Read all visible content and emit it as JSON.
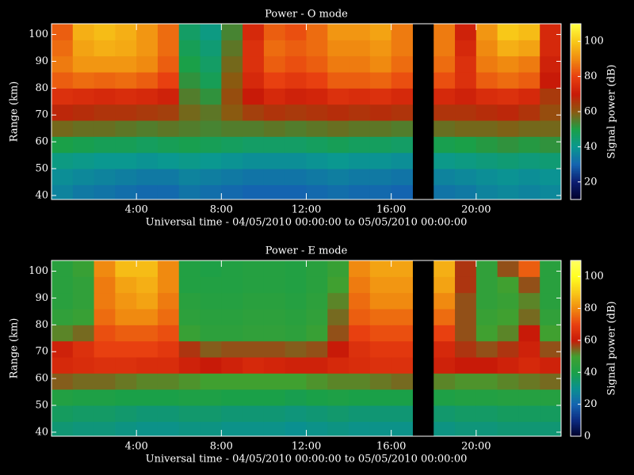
{
  "chart_data": [
    {
      "type": "heatmap",
      "title": "Power - O mode",
      "xlabel": "Universal time - 04/05/2010 00:00:00 to 05/05/2010 00:00:00",
      "ylabel": "Range (km)",
      "colorbar_label": "Signal power (dB)",
      "xlim": [
        0,
        24
      ],
      "ylim": [
        38.5,
        104
      ],
      "xticks": [
        {
          "value": 4,
          "label": "4:00"
        },
        {
          "value": 8,
          "label": "8:00"
        },
        {
          "value": 12,
          "label": "12:00"
        },
        {
          "value": 16,
          "label": "16:00"
        },
        {
          "value": 20,
          "label": "20:00"
        }
      ],
      "yticks": [
        40,
        50,
        60,
        70,
        80,
        90,
        100
      ],
      "zlim": [
        10,
        110
      ],
      "zticks": [
        20,
        40,
        60,
        80,
        100
      ],
      "colorscale": [
        "#000028",
        "#0c1c70",
        "#1464b0",
        "#0a9890",
        "#1aa048",
        "#8a5a10",
        "#c81a08",
        "#e84010",
        "#f08a10",
        "#f8c818",
        "#ffff40"
      ],
      "x_bins": [
        0,
        1,
        2,
        3,
        4,
        5,
        6,
        7,
        8,
        9,
        10,
        11,
        12,
        13,
        14,
        15,
        16,
        17,
        18,
        19,
        20,
        21,
        22,
        23,
        24
      ],
      "y_bins": [
        38,
        44,
        50,
        56,
        62,
        68,
        74,
        80,
        86,
        92,
        98,
        104
      ],
      "values": [
        [
          36,
          34,
          33,
          32,
          31,
          31,
          33,
          32,
          31,
          30,
          30,
          30,
          31,
          32,
          31,
          31,
          30,
          null,
          33,
          34,
          36,
          37,
          36,
          37
        ],
        [
          38,
          37,
          36,
          35,
          34,
          34,
          36,
          35,
          34,
          33,
          33,
          33,
          34,
          35,
          34,
          34,
          33,
          null,
          36,
          37,
          38,
          39,
          38,
          39
        ],
        [
          42,
          41,
          40,
          40,
          39,
          40,
          41,
          40,
          39,
          38,
          38,
          38,
          39,
          40,
          39,
          39,
          38,
          null,
          41,
          42,
          43,
          44,
          43,
          44
        ],
        [
          50,
          49,
          48,
          48,
          47,
          48,
          49,
          48,
          47,
          46,
          46,
          46,
          47,
          48,
          47,
          47,
          46,
          null,
          49,
          50,
          51,
          52,
          51,
          52
        ],
        [
          58,
          57,
          57,
          56,
          55,
          56,
          55,
          54,
          55,
          55,
          56,
          55,
          56,
          57,
          56,
          56,
          55,
          null,
          57,
          58,
          58,
          59,
          58,
          58
        ],
        [
          68,
          67,
          66,
          66,
          65,
          64,
          58,
          56,
          60,
          64,
          66,
          65,
          66,
          67,
          66,
          67,
          66,
          null,
          66,
          66,
          67,
          68,
          66,
          62
        ],
        [
          76,
          75,
          74,
          75,
          74,
          72,
          55,
          52,
          62,
          70,
          74,
          72,
          73,
          76,
          75,
          76,
          74,
          null,
          74,
          72,
          75,
          76,
          74,
          65
        ],
        [
          84,
          86,
          85,
          86,
          84,
          80,
          52,
          48,
          60,
          74,
          80,
          78,
          80,
          84,
          84,
          85,
          82,
          null,
          82,
          76,
          84,
          86,
          84,
          70
        ],
        [
          88,
          92,
          92,
          92,
          90,
          84,
          50,
          46,
          58,
          76,
          84,
          82,
          84,
          88,
          88,
          90,
          86,
          null,
          86,
          76,
          88,
          90,
          88,
          72
        ],
        [
          86,
          94,
          96,
          95,
          92,
          86,
          48,
          44,
          56,
          76,
          86,
          84,
          86,
          90,
          90,
          92,
          88,
          null,
          88,
          74,
          90,
          96,
          94,
          74
        ],
        [
          84,
          96,
          98,
          96,
          92,
          86,
          46,
          42,
          54,
          74,
          84,
          82,
          86,
          92,
          92,
          94,
          88,
          null,
          88,
          72,
          92,
          100,
          98,
          74
        ]
      ]
    },
    {
      "type": "heatmap",
      "title": "Power - E mode",
      "xlabel": "Universal time - 04/05/2010 00:00:00 to 05/05/2010 00:00:00",
      "ylabel": "Range (km)",
      "colorbar_label": "Signal power (dB)",
      "xlim": [
        0,
        24
      ],
      "ylim": [
        38.5,
        104
      ],
      "xticks": [
        {
          "value": 4,
          "label": "4:00"
        },
        {
          "value": 8,
          "label": "8:00"
        },
        {
          "value": 12,
          "label": "12:00"
        },
        {
          "value": 16,
          "label": "16:00"
        },
        {
          "value": 20,
          "label": "20:00"
        }
      ],
      "yticks": [
        40,
        50,
        60,
        70,
        80,
        90,
        100
      ],
      "zlim": [
        0,
        110
      ],
      "zticks": [
        0,
        20,
        40,
        60,
        80,
        100
      ],
      "colorscale": [
        "#000028",
        "#0c2a80",
        "#1464b0",
        "#0a9090",
        "#1aa048",
        "#40a030",
        "#c81a08",
        "#e84010",
        "#f08a10",
        "#f8c818",
        "#ffff20",
        "#ffff60"
      ],
      "x_bins": [
        0,
        1,
        2,
        3,
        4,
        5,
        6,
        7,
        8,
        9,
        10,
        11,
        12,
        13,
        14,
        15,
        16,
        17,
        18,
        19,
        20,
        21,
        22,
        23,
        24
      ],
      "y_bins": [
        38,
        44,
        50,
        56,
        62,
        68,
        74,
        80,
        86,
        92,
        98,
        104
      ],
      "values": [
        [
          34,
          33,
          33,
          32,
          31,
          31,
          32,
          32,
          31,
          31,
          31,
          30,
          31,
          32,
          31,
          31,
          31,
          null,
          32,
          33,
          33,
          34,
          34,
          34
        ],
        [
          37,
          36,
          36,
          35,
          34,
          34,
          35,
          35,
          34,
          34,
          34,
          33,
          34,
          35,
          34,
          34,
          34,
          null,
          35,
          36,
          36,
          37,
          37,
          37
        ],
        [
          42,
          41,
          41,
          40,
          40,
          40,
          41,
          41,
          40,
          40,
          40,
          39,
          40,
          41,
          40,
          40,
          40,
          null,
          41,
          42,
          42,
          43,
          43,
          43
        ],
        [
          55,
          54,
          54,
          53,
          52,
          52,
          51,
          50,
          50,
          50,
          50,
          50,
          51,
          52,
          52,
          53,
          54,
          null,
          52,
          51,
          51,
          52,
          53,
          54
        ],
        [
          64,
          65,
          66,
          66,
          65,
          65,
          62,
          60,
          62,
          64,
          63,
          62,
          62,
          64,
          65,
          66,
          66,
          null,
          62,
          60,
          60,
          62,
          64,
          62
        ],
        [
          62,
          66,
          70,
          70,
          70,
          68,
          58,
          55,
          56,
          56,
          56,
          55,
          56,
          60,
          66,
          68,
          68,
          null,
          64,
          58,
          56,
          58,
          62,
          56
        ],
        [
          52,
          54,
          72,
          74,
          74,
          72,
          48,
          45,
          45,
          46,
          46,
          45,
          48,
          56,
          70,
          72,
          72,
          null,
          70,
          56,
          50,
          52,
          60,
          50
        ],
        [
          46,
          48,
          76,
          80,
          80,
          76,
          45,
          44,
          44,
          45,
          45,
          44,
          46,
          54,
          74,
          76,
          76,
          null,
          76,
          56,
          48,
          50,
          54,
          46
        ],
        [
          44,
          46,
          78,
          82,
          84,
          78,
          44,
          43,
          43,
          44,
          44,
          43,
          45,
          52,
          76,
          80,
          80,
          null,
          80,
          56,
          46,
          48,
          52,
          44
        ],
        [
          44,
          46,
          78,
          84,
          86,
          80,
          42,
          42,
          42,
          43,
          43,
          42,
          44,
          50,
          78,
          82,
          82,
          null,
          84,
          58,
          46,
          50,
          56,
          44
        ],
        [
          44,
          48,
          80,
          88,
          88,
          80,
          42,
          41,
          42,
          43,
          43,
          42,
          44,
          48,
          80,
          84,
          84,
          null,
          86,
          58,
          46,
          56,
          74,
          44
        ]
      ]
    }
  ]
}
